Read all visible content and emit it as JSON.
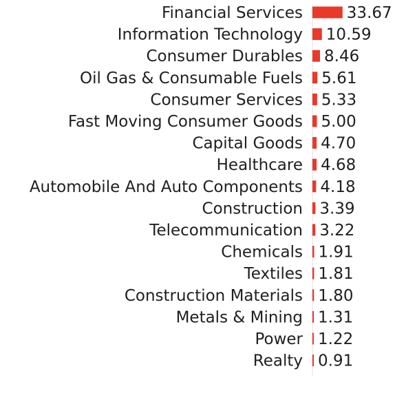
{
  "chart_data": {
    "type": "bar",
    "orientation": "horizontal",
    "categories": [
      "Financial Services",
      "Information Technology",
      "Consumer Durables",
      "Oil Gas & Consumable Fuels",
      "Consumer Services",
      "Fast Moving Consumer Goods",
      "Capital Goods",
      "Healthcare",
      "Automobile And Auto Components",
      "Construction",
      "Telecommunication",
      "Chemicals",
      "Textiles",
      "Construction Materials",
      "Metals & Mining",
      "Power",
      "Realty"
    ],
    "values": [
      33.67,
      10.59,
      8.46,
      5.61,
      5.33,
      5.0,
      4.7,
      4.68,
      4.18,
      3.39,
      3.22,
      1.91,
      1.81,
      1.8,
      1.31,
      1.22,
      0.91
    ],
    "value_labels": [
      "33.67",
      "10.59",
      "8.46",
      "5.61",
      "5.33",
      "5.00",
      "4.70",
      "4.68",
      "4.18",
      "3.39",
      "3.22",
      "1.91",
      "1.81",
      "1.80",
      "1.31",
      "1.22",
      "0.91"
    ],
    "colors": {
      "bar": "#e8392a",
      "text": "#1f1f1f",
      "axis": "#e0e0e0"
    },
    "grid": false,
    "legend": "none"
  }
}
